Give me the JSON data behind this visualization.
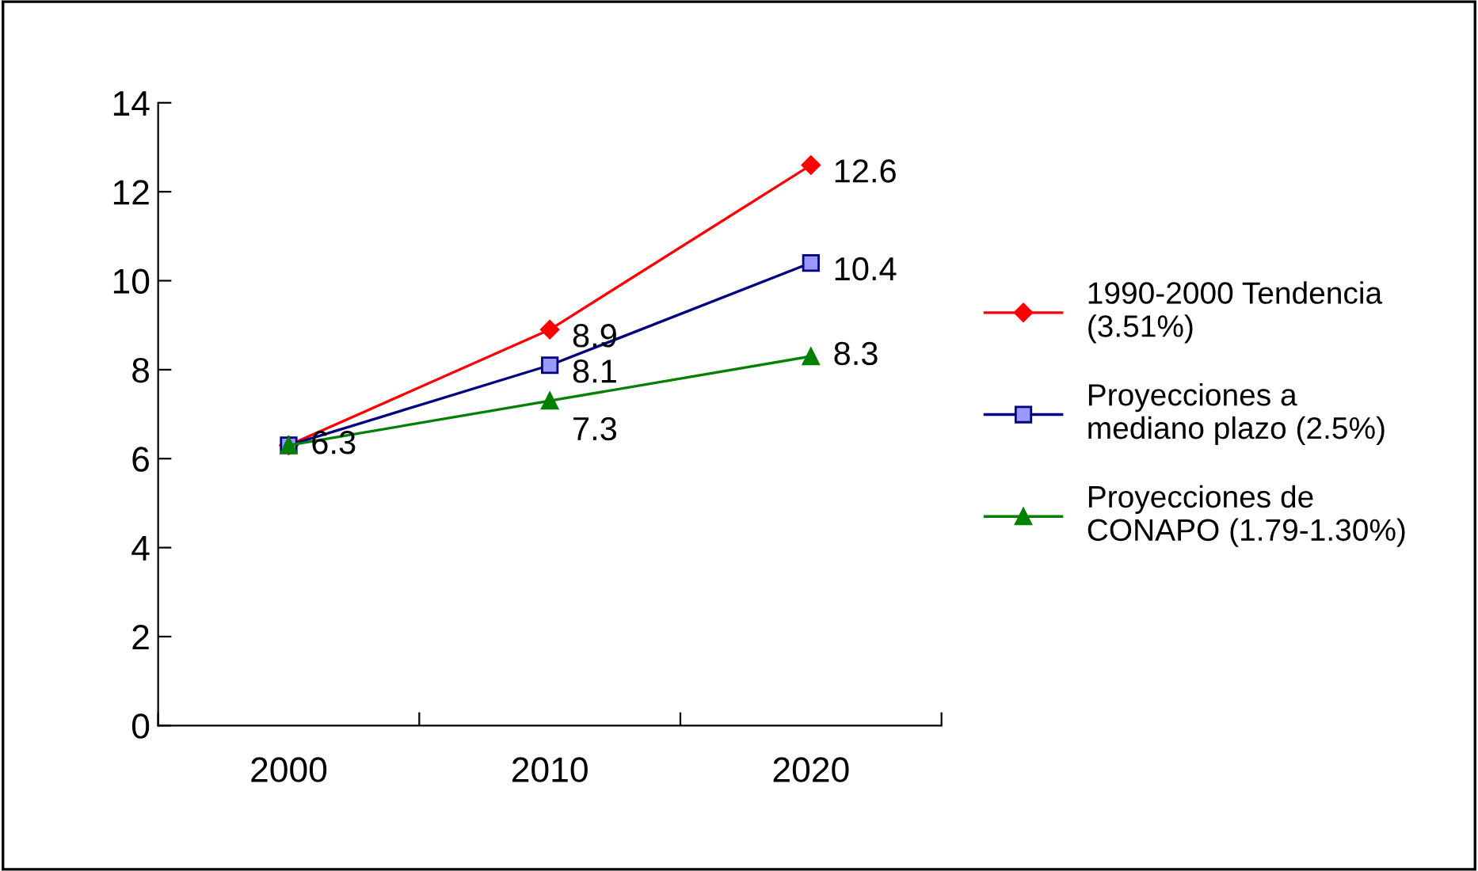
{
  "chart_data": {
    "type": "line",
    "categories": [
      "2000",
      "2010",
      "2020"
    ],
    "series": [
      {
        "name": "1990-2000 Tendencia\n(3.51%)",
        "color": "#ff0000",
        "marker": "diamond",
        "values": [
          6.3,
          8.9,
          12.6
        ],
        "value_labels": [
          null,
          "8.9",
          "12.6"
        ]
      },
      {
        "name": "Proyecciones a\nmediano plazo (2.5%)",
        "color": "#000080",
        "marker": "square",
        "values": [
          6.3,
          8.1,
          10.4
        ],
        "value_labels": [
          null,
          "8.1",
          "10.4"
        ]
      },
      {
        "name": "Proyecciones de\nCONAPO (1.79-1.30%)",
        "color": "#008000",
        "marker": "triangle",
        "values": [
          6.3,
          7.3,
          8.3
        ],
        "value_labels": [
          "6.3",
          "7.3",
          "8.3"
        ]
      }
    ],
    "ylim": [
      0,
      14
    ],
    "yticks": [
      0,
      2,
      4,
      6,
      8,
      10,
      12,
      14
    ],
    "grid": false,
    "legend": "right"
  }
}
